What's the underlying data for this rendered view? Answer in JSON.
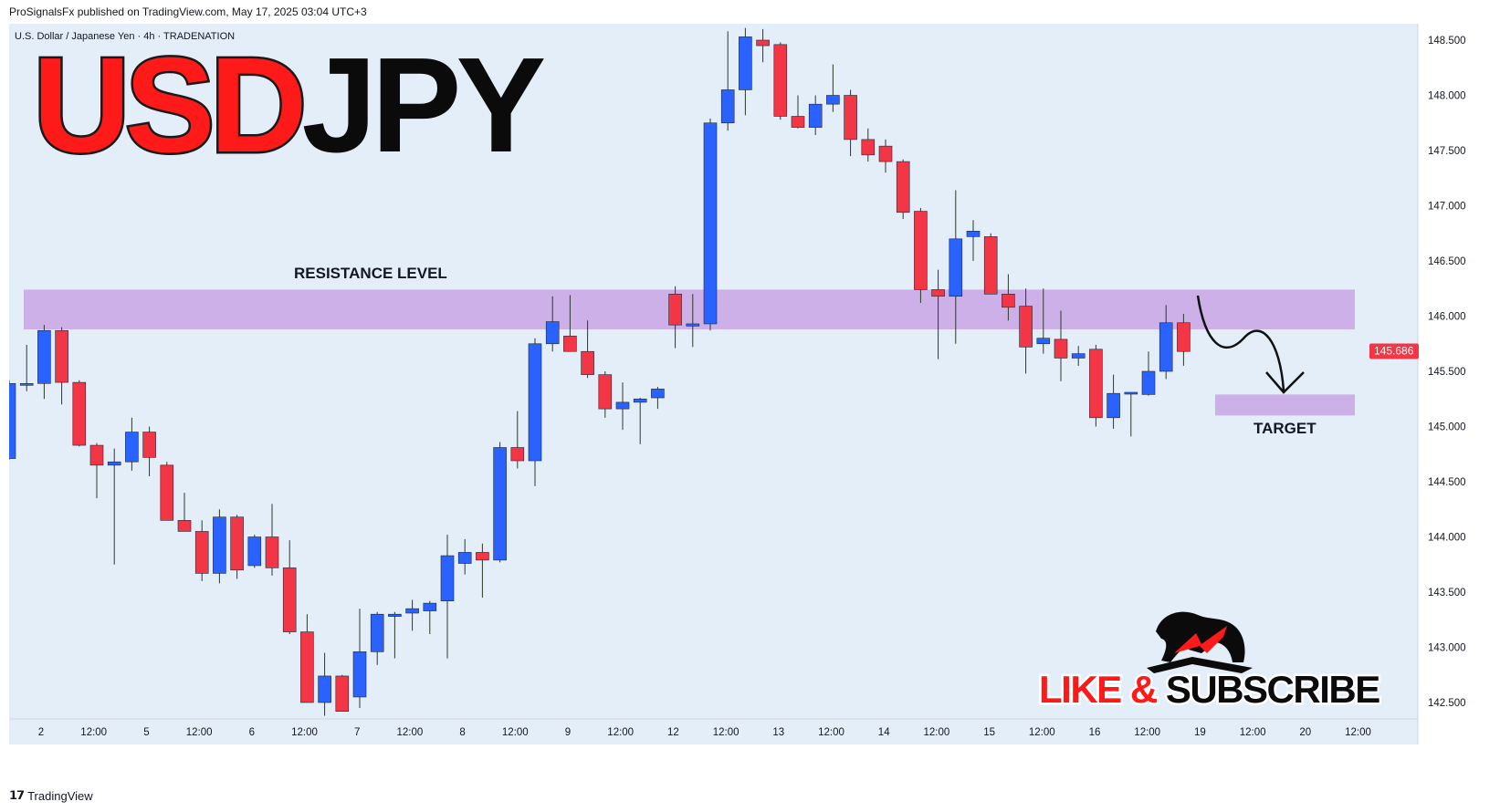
{
  "header": {
    "published": "ProSignalsFx published on TradingView.com, May 17, 2025 03:04 UTC+3",
    "symbol_line": "U.S. Dollar / Japanese Yen · 4h · TRADENATION"
  },
  "overlay": {
    "title_red": "USD",
    "title_black": "JPY",
    "resistance_label": "RESISTANCE LEVEL",
    "target_label": "TARGET",
    "cta_red": "LIKE & ",
    "cta_black": "SUBSCRIBE"
  },
  "footer": {
    "brand": "TradingView"
  },
  "colors": {
    "background": "#e3eef9",
    "up": "#2962ff",
    "down": "#f23645",
    "zone": "#c9a8e4",
    "title_red": "#ff1a1a",
    "price_badge": "#f23645"
  },
  "icons": [
    "tradingview-logo-icon",
    "bull-bear-logo-icon",
    "down-arrow-icon"
  ],
  "chart_data": {
    "type": "candlestick",
    "instrument": "U.S. Dollar / Japanese Yen",
    "timeframe": "4h",
    "y_ticks": [
      142.5,
      143.0,
      143.5,
      144.0,
      144.5,
      145.0,
      145.5,
      146.0,
      146.5,
      147.0,
      147.5,
      148.0,
      148.5
    ],
    "y_range": [
      142.35,
      148.62
    ],
    "x_ticks": [
      "2",
      "12:00",
      "5",
      "12:00",
      "6",
      "12:00",
      "7",
      "12:00",
      "8",
      "12:00",
      "9",
      "12:00",
      "12",
      "12:00",
      "13",
      "12:00",
      "14",
      "12:00",
      "15",
      "12:00",
      "16",
      "12:00",
      "19",
      "12:00",
      "20",
      "12:00"
    ],
    "last_price": "145.686",
    "resistance_zone": [
      145.88,
      146.24
    ],
    "target_zone": [
      145.1,
      145.29
    ],
    "candles": [
      {
        "o": 144.71,
        "h": 145.42,
        "l": 144.7,
        "c": 145.39
      },
      {
        "o": 145.38,
        "h": 145.74,
        "l": 145.32,
        "c": 145.39
      },
      {
        "o": 145.39,
        "h": 145.92,
        "l": 145.25,
        "c": 145.87
      },
      {
        "o": 145.87,
        "h": 145.9,
        "l": 145.2,
        "c": 145.4
      },
      {
        "o": 145.4,
        "h": 145.42,
        "l": 144.82,
        "c": 144.83
      },
      {
        "o": 144.83,
        "h": 144.85,
        "l": 144.35,
        "c": 144.65
      },
      {
        "o": 144.65,
        "h": 144.8,
        "l": 143.75,
        "c": 144.68
      },
      {
        "o": 144.68,
        "h": 145.08,
        "l": 144.6,
        "c": 144.95
      },
      {
        "o": 144.95,
        "h": 145.0,
        "l": 144.55,
        "c": 144.72
      },
      {
        "o": 144.65,
        "h": 144.68,
        "l": 144.15,
        "c": 144.15
      },
      {
        "o": 144.15,
        "h": 144.4,
        "l": 144.05,
        "c": 144.05
      },
      {
        "o": 144.05,
        "h": 144.15,
        "l": 143.6,
        "c": 143.67
      },
      {
        "o": 143.67,
        "h": 144.25,
        "l": 143.58,
        "c": 144.18
      },
      {
        "o": 144.18,
        "h": 144.2,
        "l": 143.62,
        "c": 143.7
      },
      {
        "o": 143.74,
        "h": 144.02,
        "l": 143.72,
        "c": 144.0
      },
      {
        "o": 144.0,
        "h": 144.3,
        "l": 143.65,
        "c": 143.72
      },
      {
        "o": 143.72,
        "h": 143.97,
        "l": 143.12,
        "c": 143.14
      },
      {
        "o": 143.14,
        "h": 143.3,
        "l": 142.5,
        "c": 142.5
      },
      {
        "o": 142.5,
        "h": 142.95,
        "l": 142.38,
        "c": 142.74
      },
      {
        "o": 142.74,
        "h": 142.75,
        "l": 142.42,
        "c": 142.42
      },
      {
        "o": 142.55,
        "h": 143.35,
        "l": 142.45,
        "c": 142.96
      },
      {
        "o": 142.96,
        "h": 143.32,
        "l": 142.84,
        "c": 143.3
      },
      {
        "o": 143.28,
        "h": 143.32,
        "l": 142.9,
        "c": 143.3
      },
      {
        "o": 143.31,
        "h": 143.43,
        "l": 143.15,
        "c": 143.35
      },
      {
        "o": 143.33,
        "h": 143.42,
        "l": 143.12,
        "c": 143.4
      },
      {
        "o": 143.42,
        "h": 144.02,
        "l": 142.9,
        "c": 143.83
      },
      {
        "o": 143.76,
        "h": 143.98,
        "l": 143.66,
        "c": 143.86
      },
      {
        "o": 143.86,
        "h": 143.94,
        "l": 143.45,
        "c": 143.79
      },
      {
        "o": 143.79,
        "h": 144.86,
        "l": 143.77,
        "c": 144.81
      },
      {
        "o": 144.81,
        "h": 145.14,
        "l": 144.62,
        "c": 144.69
      },
      {
        "o": 144.69,
        "h": 145.8,
        "l": 144.46,
        "c": 145.75
      },
      {
        "o": 145.75,
        "h": 146.18,
        "l": 145.68,
        "c": 145.95
      },
      {
        "o": 145.82,
        "h": 146.19,
        "l": 145.68,
        "c": 145.68
      },
      {
        "o": 145.68,
        "h": 145.96,
        "l": 145.44,
        "c": 145.47
      },
      {
        "o": 145.47,
        "h": 145.5,
        "l": 145.08,
        "c": 145.16
      },
      {
        "o": 145.16,
        "h": 145.4,
        "l": 144.97,
        "c": 145.22
      },
      {
        "o": 145.22,
        "h": 145.26,
        "l": 144.84,
        "c": 145.25
      },
      {
        "o": 145.26,
        "h": 145.36,
        "l": 145.16,
        "c": 145.34
      },
      {
        "o": 146.2,
        "h": 146.27,
        "l": 145.71,
        "c": 145.92
      },
      {
        "o": 145.91,
        "h": 146.2,
        "l": 145.72,
        "c": 145.93
      },
      {
        "o": 145.93,
        "h": 147.79,
        "l": 145.87,
        "c": 147.75
      },
      {
        "o": 147.75,
        "h": 148.58,
        "l": 147.68,
        "c": 148.05
      },
      {
        "o": 148.05,
        "h": 148.61,
        "l": 147.82,
        "c": 148.53
      },
      {
        "o": 148.5,
        "h": 148.6,
        "l": 148.3,
        "c": 148.45
      },
      {
        "o": 148.46,
        "h": 148.48,
        "l": 147.78,
        "c": 147.81
      },
      {
        "o": 147.81,
        "h": 148.0,
        "l": 147.7,
        "c": 147.71
      },
      {
        "o": 147.71,
        "h": 148.0,
        "l": 147.64,
        "c": 147.92
      },
      {
        "o": 147.92,
        "h": 148.28,
        "l": 147.85,
        "c": 148.0
      },
      {
        "o": 148.0,
        "h": 148.05,
        "l": 147.45,
        "c": 147.6
      },
      {
        "o": 147.6,
        "h": 147.7,
        "l": 147.4,
        "c": 147.46
      },
      {
        "o": 147.54,
        "h": 147.6,
        "l": 147.3,
        "c": 147.4
      },
      {
        "o": 147.4,
        "h": 147.42,
        "l": 146.88,
        "c": 146.94
      },
      {
        "o": 146.95,
        "h": 146.98,
        "l": 146.12,
        "c": 146.24
      },
      {
        "o": 146.24,
        "h": 146.42,
        "l": 145.61,
        "c": 146.18
      },
      {
        "o": 146.18,
        "h": 147.14,
        "l": 145.75,
        "c": 146.7
      },
      {
        "o": 146.72,
        "h": 146.87,
        "l": 146.5,
        "c": 146.77
      },
      {
        "o": 146.72,
        "h": 146.75,
        "l": 146.2,
        "c": 146.2
      },
      {
        "o": 146.2,
        "h": 146.38,
        "l": 145.96,
        "c": 146.08
      },
      {
        "o": 146.09,
        "h": 146.25,
        "l": 145.48,
        "c": 145.72
      },
      {
        "o": 145.75,
        "h": 146.25,
        "l": 145.66,
        "c": 145.8
      },
      {
        "o": 145.79,
        "h": 146.05,
        "l": 145.41,
        "c": 145.62
      },
      {
        "o": 145.62,
        "h": 145.73,
        "l": 145.55,
        "c": 145.66
      },
      {
        "o": 145.7,
        "h": 145.74,
        "l": 145.0,
        "c": 145.08
      },
      {
        "o": 145.08,
        "h": 145.47,
        "l": 144.98,
        "c": 145.3
      },
      {
        "o": 145.3,
        "h": 145.31,
        "l": 144.91,
        "c": 145.31
      },
      {
        "o": 145.29,
        "h": 145.68,
        "l": 145.28,
        "c": 145.5
      },
      {
        "o": 145.5,
        "h": 146.1,
        "l": 145.43,
        "c": 145.94
      },
      {
        "o": 145.94,
        "h": 146.02,
        "l": 145.55,
        "c": 145.68
      }
    ]
  }
}
